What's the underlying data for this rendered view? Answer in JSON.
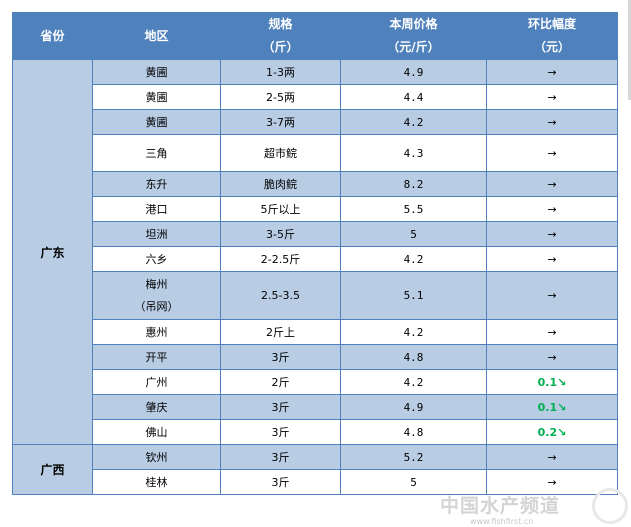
{
  "header": {
    "province": "省份",
    "region": "地区",
    "spec": "规格",
    "spec_unit": "（斤）",
    "price": "本周价格",
    "price_unit": "（元/斤）",
    "change": "环比幅度",
    "change_unit": "（元）"
  },
  "provinces": [
    {
      "name": "广东",
      "rows": [
        {
          "region": "黄圃",
          "spec": "1-3两",
          "price": "4.9",
          "change": "",
          "trend": "flat"
        },
        {
          "region": "黄圃",
          "spec": "2-5两",
          "price": "4.4",
          "change": "",
          "trend": "flat"
        },
        {
          "region": "黄圃",
          "spec": "3-7两",
          "price": "4.2",
          "change": "",
          "trend": "flat"
        },
        {
          "region": "三角",
          "spec": "超市鲩",
          "price": "4.3",
          "change": "",
          "trend": "flat"
        },
        {
          "region": "东升",
          "spec": "脆肉鲩",
          "price": "8.2",
          "change": "",
          "trend": "flat"
        },
        {
          "region": "港口",
          "spec": "5斤以上",
          "price": "5.5",
          "change": "",
          "trend": "flat"
        },
        {
          "region": "坦洲",
          "spec": "3-5斤",
          "price": "5",
          "change": "",
          "trend": "flat"
        },
        {
          "region": "六乡",
          "spec": "2-2.5斤",
          "price": "4.2",
          "change": "",
          "trend": "flat"
        },
        {
          "region": "梅州",
          "region2": "（吊网）",
          "spec": "2.5-3.5",
          "price": "5.1",
          "change": "",
          "trend": "flat"
        },
        {
          "region": "惠州",
          "spec": "2斤上",
          "price": "4.2",
          "change": "",
          "trend": "flat"
        },
        {
          "region": "开平",
          "spec": "3斤",
          "price": "4.8",
          "change": "",
          "trend": "flat"
        },
        {
          "region": "广州",
          "spec": "2斤",
          "price": "4.2",
          "change": "0.1",
          "trend": "down"
        },
        {
          "region": "肇庆",
          "spec": "3斤",
          "price": "4.9",
          "change": "0.1",
          "trend": "down"
        },
        {
          "region": "佛山",
          "spec": "3斤",
          "price": "4.8",
          "change": "0.2",
          "trend": "down"
        }
      ]
    },
    {
      "name": "广西",
      "rows": [
        {
          "region": "钦州",
          "spec": "3斤",
          "price": "5.2",
          "change": "",
          "trend": "flat"
        },
        {
          "region": "桂林",
          "spec": "3斤",
          "price": "5",
          "change": "",
          "trend": "flat"
        }
      ]
    }
  ],
  "icons": {
    "flat": "arrow-right-icon",
    "down": "arrow-down-right-icon"
  },
  "colors": {
    "header": "#4f81bd",
    "band": "#b8cce4",
    "down": "#00b050"
  },
  "watermark": {
    "text": "中国水产频道",
    "url": "www.fishfirst.cn"
  }
}
